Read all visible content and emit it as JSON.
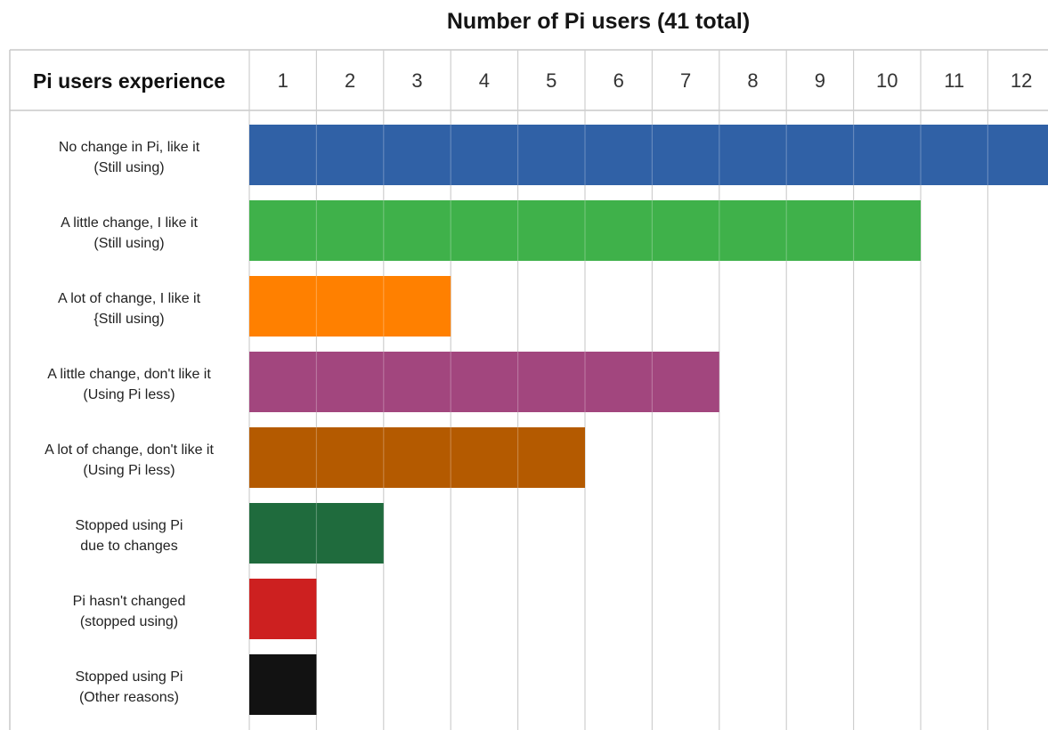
{
  "chart_data": {
    "type": "bar",
    "orientation": "horizontal",
    "title": "Number of Pi users (41 total)",
    "row_header": "Pi users experience",
    "x_ticks": [
      "1",
      "2",
      "3",
      "4",
      "5",
      "6",
      "7",
      "8",
      "9",
      "10",
      "11",
      "12"
    ],
    "xlim": [
      0,
      12
    ],
    "grid": true,
    "categories": [
      [
        "No change in Pi, like it",
        "(Still using)"
      ],
      [
        "A little change, I like it",
        "(Still using)"
      ],
      [
        "A lot of change, I like it",
        "{Still using)"
      ],
      [
        "A little change, don't like it",
        "(Using Pi less)"
      ],
      [
        "A lot of change, don't like it",
        "(Using Pi less)"
      ],
      [
        "Stopped using Pi",
        "due to changes"
      ],
      [
        "Pi hasn't changed",
        "(stopped using)"
      ],
      [
        "Stopped using Pi",
        "(Other reasons)"
      ]
    ],
    "values": [
      12,
      10,
      3,
      7,
      5,
      2,
      1,
      1
    ],
    "colors": [
      "#3061a6",
      "#3fb14a",
      "#ff8000",
      "#a2467e",
      "#b45a00",
      "#1f6b3d",
      "#cd2020",
      "#121212"
    ]
  }
}
